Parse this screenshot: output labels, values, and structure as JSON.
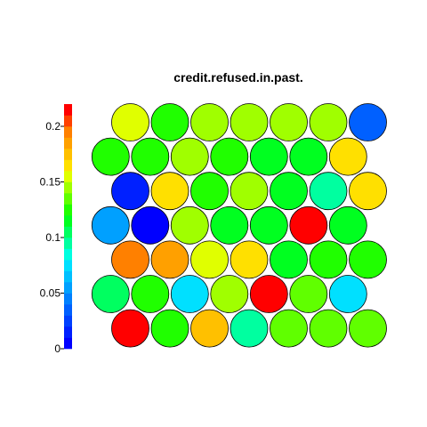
{
  "chart_data": {
    "type": "heatmap",
    "subtype": "som-hexagonal-property-map",
    "title": "credit.refused.in.past.",
    "grid": {
      "rows": 7,
      "cols": 7,
      "topology": "hexagonal"
    },
    "colorbar": {
      "min": 0,
      "max": 0.22,
      "ticks": [
        "0",
        "0.05",
        "0.1",
        "0.15",
        "0.2"
      ],
      "tick_values": [
        0,
        0.05,
        0.1,
        0.15,
        0.2
      ],
      "palette": [
        "#0000ff",
        "#0020ff",
        "#0040ff",
        "#0060ff",
        "#0080ff",
        "#00a0ff",
        "#00c0ff",
        "#00e0ff",
        "#00ffe0",
        "#00ffa0",
        "#00ff60",
        "#00ff20",
        "#20ff00",
        "#60ff00",
        "#a0ff00",
        "#e0ff00",
        "#ffe000",
        "#ffc000",
        "#ffa000",
        "#ff8000",
        "#ff4000",
        "#ff0000"
      ]
    },
    "rows_top_to_bottom": [
      {
        "values": [
          0.155,
          0.125,
          0.14,
          0.14,
          0.14,
          0.145,
          0.035
        ]
      },
      {
        "values": [
          0.125,
          0.125,
          0.145,
          0.125,
          0.115,
          0.11,
          0.16
        ]
      },
      {
        "values": [
          0.01,
          0.16,
          0.125,
          0.15,
          0.115,
          0.09,
          0.16
        ]
      },
      {
        "values": [
          0.055,
          0.005,
          0.145,
          0.11,
          0.115,
          0.22,
          0.11
        ]
      },
      {
        "values": [
          0.195,
          0.185,
          0.155,
          0.165,
          0.115,
          0.12,
          0.125
        ]
      },
      {
        "values": [
          0.1,
          0.125,
          0.075,
          0.15,
          0.21,
          0.135,
          0.075
        ]
      },
      {
        "values": [
          0.21,
          0.125,
          0.175,
          0.095,
          0.135,
          0.13,
          0.135
        ]
      }
    ]
  }
}
